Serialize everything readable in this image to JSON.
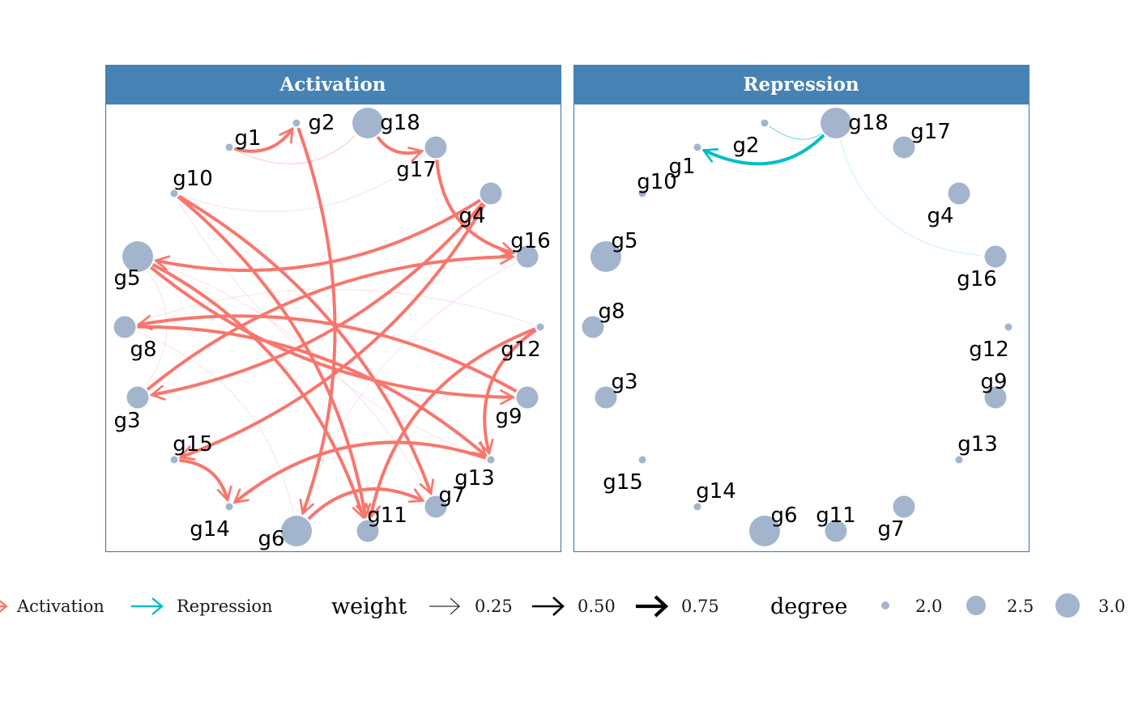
{
  "panels": [
    {
      "title": "Activation",
      "color": "#F8766D",
      "edges": [
        [
          "g1",
          "g2",
          0.75,
          1
        ],
        [
          "g18",
          "g17",
          0.75,
          1
        ],
        [
          "g17",
          "g16",
          0.75,
          1
        ],
        [
          "g10",
          "g7",
          0.75,
          1
        ],
        [
          "g5",
          "g9",
          0.75,
          1
        ],
        [
          "g5",
          "g11",
          0.75,
          1
        ],
        [
          "g4",
          "g5",
          0.75,
          1
        ],
        [
          "g4",
          "g3",
          0.75,
          1
        ],
        [
          "g4",
          "g15",
          0.75,
          1
        ],
        [
          "g3",
          "g16",
          0.75,
          1
        ],
        [
          "g2",
          "g6",
          0.75,
          1
        ],
        [
          "g10",
          "g11",
          0.75,
          1
        ],
        [
          "g9",
          "g8",
          0.75,
          1
        ],
        [
          "g8",
          "g13",
          0.75,
          1
        ],
        [
          "g12",
          "g13",
          0.75,
          1
        ],
        [
          "g12",
          "g11",
          0.75,
          1
        ],
        [
          "g13",
          "g14",
          0.75,
          1
        ],
        [
          "g6",
          "g7",
          0.75,
          1
        ],
        [
          "g15",
          "g14",
          0.75,
          1
        ],
        [
          "g18",
          "g1",
          0.25,
          0.5
        ],
        [
          "g17",
          "g10",
          0.25,
          0
        ],
        [
          "g5",
          "g3",
          0.25,
          0
        ],
        [
          "g8",
          "g6",
          0.25,
          0
        ],
        [
          "g16",
          "g6",
          0.25,
          0
        ],
        [
          "g10",
          "g13",
          0.25,
          0
        ],
        [
          "g5",
          "g7",
          0.25,
          0
        ],
        [
          "g8",
          "g12",
          0.25,
          0
        ]
      ]
    },
    {
      "title": "Repression",
      "color": "#00BFC4",
      "edges": [
        [
          "g18",
          "g1",
          0.75,
          1
        ],
        [
          "g2",
          "g18",
          0.25,
          1
        ],
        [
          "g18",
          "g16",
          0.25,
          0
        ]
      ]
    }
  ],
  "nodes": [
    {
      "name": "g1",
      "degree": 2.0
    },
    {
      "name": "g2",
      "degree": 2.0
    },
    {
      "name": "g18",
      "degree": 3.0
    },
    {
      "name": "g17",
      "degree": 2.5
    },
    {
      "name": "g4",
      "degree": 2.5
    },
    {
      "name": "g16",
      "degree": 2.5
    },
    {
      "name": "g12",
      "degree": 2.0
    },
    {
      "name": "g9",
      "degree": 2.5
    },
    {
      "name": "g13",
      "degree": 2.0
    },
    {
      "name": "g7",
      "degree": 2.5
    },
    {
      "name": "g11",
      "degree": 2.5
    },
    {
      "name": "g6",
      "degree": 3.0
    },
    {
      "name": "g14",
      "degree": 2.0
    },
    {
      "name": "g15",
      "degree": 2.0
    },
    {
      "name": "g3",
      "degree": 2.5
    },
    {
      "name": "g8",
      "degree": 2.5
    },
    {
      "name": "g5",
      "degree": 3.0
    },
    {
      "name": "g10",
      "degree": 2.0
    }
  ],
  "legend": {
    "type_items": [
      {
        "label": "Activation",
        "color": "#F8766D"
      },
      {
        "label": "Repression",
        "color": "#00BFC4"
      }
    ],
    "weight_title": "weight",
    "weight_items": [
      {
        "label": "0.25",
        "value": 0.25
      },
      {
        "label": "0.50",
        "value": 0.5
      },
      {
        "label": "0.75",
        "value": 0.75
      }
    ],
    "degree_title": "degree",
    "degree_items": [
      {
        "label": "2.0",
        "value": 2.0
      },
      {
        "label": "2.5",
        "value": 2.5
      },
      {
        "label": "3.0",
        "value": 3.0
      }
    ]
  },
  "colors": {
    "strip": "#4682B4",
    "node": "#A2B5CD"
  }
}
